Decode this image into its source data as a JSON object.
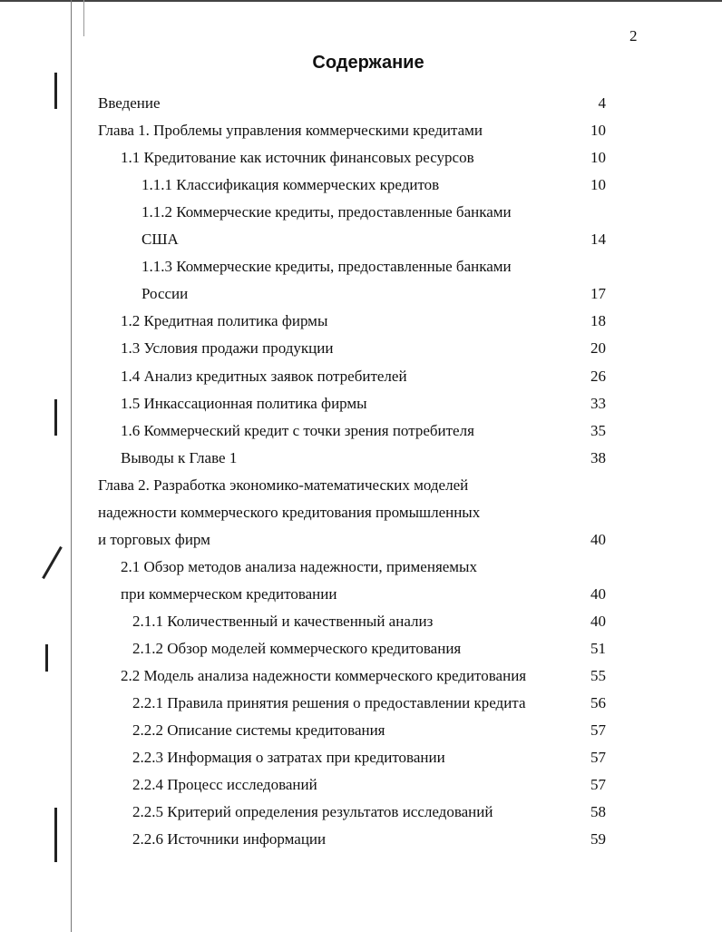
{
  "page_number": "2",
  "title": "Содержание",
  "lines": [
    {
      "text": "Введение",
      "page": "4",
      "level": 0
    },
    {
      "text": "Глава 1. Проблемы управления коммерческими кредитами",
      "page": "10",
      "level": 0
    },
    {
      "text": "1.1 Кредитование как источник финансовых ресурсов",
      "page": "10",
      "level": 1
    },
    {
      "text": "1.1.1 Классификация коммерческих кредитов",
      "page": "10",
      "level": 2
    },
    {
      "text": "1.1.2 Коммерческие кредиты, предоставленные банками",
      "page": "",
      "level": 2
    },
    {
      "text": "США",
      "page": "14",
      "level": 2
    },
    {
      "text": "1.1.3 Коммерческие кредиты, предоставленные банками",
      "page": "",
      "level": 2
    },
    {
      "text": "России",
      "page": "17",
      "level": 2
    },
    {
      "text": "1.2 Кредитная политика фирмы",
      "page": "18",
      "level": 1
    },
    {
      "text": "1.3 Условия продажи продукции",
      "page": "20",
      "level": 1
    },
    {
      "text": "1.4 Анализ кредитных заявок потребителей",
      "page": "26",
      "level": 1
    },
    {
      "text": "1.5 Инкассационная политика фирмы",
      "page": "33",
      "level": 1
    },
    {
      "text": "1.6 Коммерческий кредит с точки зрения потребителя",
      "page": "35",
      "level": 1
    },
    {
      "text": "Выводы к Главе 1",
      "page": "38",
      "level": 1
    },
    {
      "text": "Глава 2. Разработка экономико-математических моделей",
      "page": "",
      "level": 0
    },
    {
      "text": "надежности коммерческого кредитования промышленных",
      "page": "",
      "level": 0
    },
    {
      "text": "и торговых фирм",
      "page": "40",
      "level": 0
    },
    {
      "text": "2.1 Обзор методов анализа надежности, применяемых",
      "page": "",
      "level": 1
    },
    {
      "text": "при коммерческом кредитовании",
      "page": "40",
      "level": 1
    },
    {
      "text": "2.1.1 Количественный и качественный анализ",
      "page": "40",
      "level": 3
    },
    {
      "text": "2.1.2 Обзор моделей коммерческого кредитования",
      "page": "51",
      "level": 3
    },
    {
      "text": "2.2 Модель анализа надежности коммерческого кредитования",
      "page": "55",
      "level": 1
    },
    {
      "text": "2.2.1 Правила принятия решения о предоставлении кредита",
      "page": "56",
      "level": 3
    },
    {
      "text": "2.2.2 Описание системы кредитования",
      "page": "57",
      "level": 3
    },
    {
      "text": "2.2.3 Информация о затратах при кредитовании",
      "page": "57",
      "level": 3
    },
    {
      "text": "2.2.4 Процесс исследований",
      "page": "57",
      "level": 3
    },
    {
      "text": "2.2.5 Критерий определения результатов исследований",
      "page": "58",
      "level": 3
    },
    {
      "text": "2.2.6 Источники информации",
      "page": "59",
      "level": 3
    }
  ]
}
